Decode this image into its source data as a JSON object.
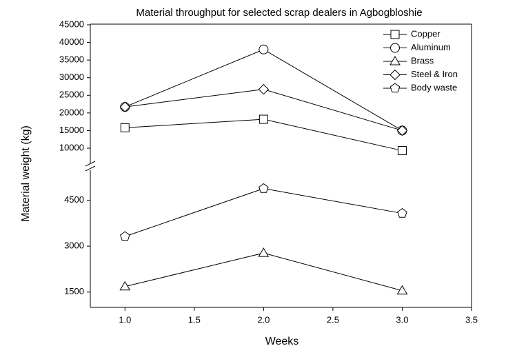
{
  "chart_data": {
    "type": "line",
    "title": "Material throughput for selected scrap dealers in Agbogbloshie",
    "x_label": "Weeks",
    "y_label": "Material weight (kg)",
    "x": [
      1,
      2,
      3
    ],
    "xlim": [
      0.75,
      3.5
    ],
    "xticks": [
      {
        "value": 1,
        "label": "1.0"
      },
      {
        "value": 1.5,
        "label": "1.5"
      },
      {
        "value": 2,
        "label": "2.0"
      },
      {
        "value": 2.5,
        "label": "2.5"
      },
      {
        "value": 3,
        "label": "3.0"
      },
      {
        "value": 3.5,
        "label": "3.5"
      }
    ],
    "y_segments": [
      {
        "ylim": [
          1000,
          5500
        ],
        "yticks": [
          1500,
          3000,
          4500
        ]
      },
      {
        "ylim": [
          5500,
          45000
        ],
        "yticks": [
          10000,
          15000,
          20000,
          25000,
          30000,
          35000,
          40000,
          45000
        ]
      }
    ],
    "legend": "upper right",
    "series": [
      {
        "name": "Copper",
        "marker": "square",
        "color": "#000000",
        "values": [
          15800,
          18200,
          9300
        ]
      },
      {
        "name": "Aluminum",
        "marker": "circle",
        "color": "#000000",
        "values": [
          21700,
          38000,
          15000
        ]
      },
      {
        "name": "Brass",
        "marker": "triangle",
        "color": "#000000",
        "values": [
          1680,
          2775,
          1545
        ]
      },
      {
        "name": "Steel & Iron",
        "marker": "diamond",
        "color": "#000000",
        "values": [
          21700,
          26700,
          15000
        ]
      },
      {
        "name": "Body waste",
        "marker": "pentagon",
        "color": "#000000",
        "values": [
          3315,
          4880,
          4070
        ]
      }
    ]
  }
}
